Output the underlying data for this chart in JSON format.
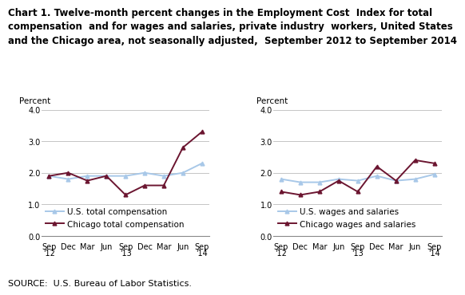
{
  "title_line1": "Chart 1. Twelve-month percent changes in the Employment Cost  Index for total",
  "title_line2": "compensation  and for wages and salaries, private industry  workers, United States",
  "title_line3": "and the Chicago area, not seasonally adjusted,  September 2012 to September 2014",
  "x_labels_top": [
    "Sep",
    "Dec",
    "Mar",
    "Jun",
    "Sep",
    "Dec",
    "Mar",
    "Jun",
    "Sep"
  ],
  "x_labels_bot": [
    "'12",
    "",
    "",
    "",
    "'13",
    "",
    "",
    "",
    "'14"
  ],
  "left_chart": {
    "us_total_comp": [
      1.9,
      1.8,
      1.9,
      1.9,
      1.9,
      2.0,
      1.9,
      2.0,
      2.3
    ],
    "chicago_total_comp": [
      1.9,
      2.0,
      1.75,
      1.9,
      1.3,
      1.6,
      1.6,
      2.8,
      3.3
    ],
    "us_label": "U.S. total compensation",
    "chicago_label": "Chicago total compensation"
  },
  "right_chart": {
    "us_wages": [
      1.8,
      1.7,
      1.7,
      1.8,
      1.75,
      1.9,
      1.75,
      1.8,
      1.95
    ],
    "chicago_wages": [
      1.4,
      1.3,
      1.4,
      1.75,
      1.4,
      2.2,
      1.75,
      2.4,
      2.3
    ],
    "us_label": "U.S. wages and salaries",
    "chicago_label": "Chicago wages and salaries"
  },
  "ylim": [
    0.0,
    4.0
  ],
  "yticks": [
    0.0,
    1.0,
    2.0,
    3.0,
    4.0
  ],
  "us_color": "#a8c8e8",
  "chicago_color": "#6b1530",
  "ylabel": "Percent",
  "source": "SOURCE:  U.S. Bureau of Labor Statistics.",
  "title_fontsize": 8.5,
  "axis_fontsize": 7.5,
  "tick_fontsize": 7,
  "legend_fontsize": 7.5,
  "source_fontsize": 8
}
